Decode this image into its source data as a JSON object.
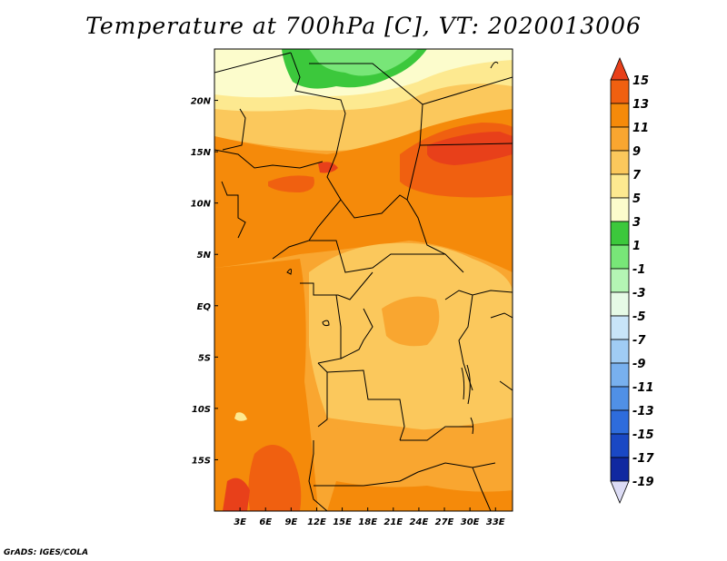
{
  "title": "Temperature at 700hPa [C], VT: 2020013006",
  "credit": "GrADS: IGES/COLA",
  "map": {
    "lon_range": [
      0,
      35
    ],
    "lat_range": [
      -20,
      25
    ],
    "lon_ticks": [
      {
        "value": 3,
        "label": "3E"
      },
      {
        "value": 6,
        "label": "6E"
      },
      {
        "value": 9,
        "label": "9E"
      },
      {
        "value": 12,
        "label": "12E"
      },
      {
        "value": 15,
        "label": "15E"
      },
      {
        "value": 18,
        "label": "18E"
      },
      {
        "value": 21,
        "label": "21E"
      },
      {
        "value": 24,
        "label": "24E"
      },
      {
        "value": 27,
        "label": "27E"
      },
      {
        "value": 30,
        "label": "30E"
      },
      {
        "value": 33,
        "label": "33E"
      }
    ],
    "lat_ticks": [
      {
        "value": 20,
        "label": "20N"
      },
      {
        "value": 15,
        "label": "15N"
      },
      {
        "value": 10,
        "label": "10N"
      },
      {
        "value": 5,
        "label": "5N"
      },
      {
        "value": 0,
        "label": "EQ"
      },
      {
        "value": -5,
        "label": "5S"
      },
      {
        "value": -10,
        "label": "10S"
      },
      {
        "value": -15,
        "label": "15S"
      }
    ]
  },
  "colorbar": {
    "labels": [
      "15",
      "13",
      "11",
      "9",
      "7",
      "5",
      "3",
      "1",
      "-1",
      "-3",
      "-5",
      "-7",
      "-9",
      "-11",
      "-13",
      "-15",
      "-17",
      "-19"
    ],
    "colors": [
      "#e8401a",
      "#f06010",
      "#f58a0a",
      "#f9a630",
      "#fbc85c",
      "#fde990",
      "#fcfccc",
      "#3cc83c",
      "#78e678",
      "#b4f5b4",
      "#e6fae6",
      "#c8e4f8",
      "#a0ccf4",
      "#78b0ee",
      "#5090e6",
      "#2e6cdc",
      "#1a48c4",
      "#1028a0",
      "#0a0a70",
      "#dcdcf5"
    ]
  }
}
